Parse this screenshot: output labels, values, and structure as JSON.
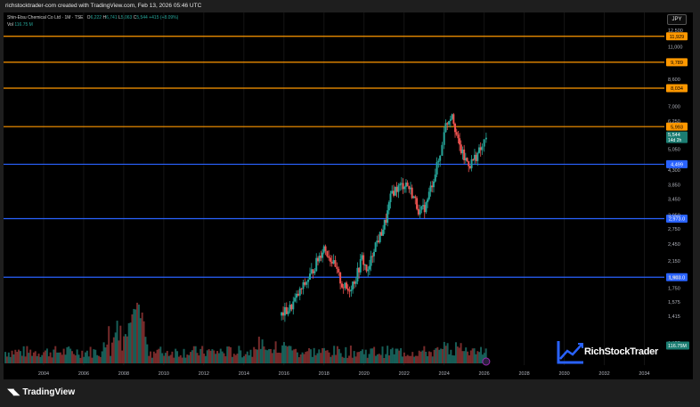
{
  "header": {
    "credit": "richstocktrader-com created with TradingView.com, Feb 13, 2026 05:46 UTC"
  },
  "legend": {
    "title": "Shin-Etsu Chemical Co Ltd · 1M · TSE",
    "o_label": "O",
    "o_val": "6,222",
    "h_label": "H",
    "h_val": "6,741",
    "l_label": "L",
    "l_val": "5,063",
    "c_label": "C",
    "c_val": "5,544",
    "change": "+415 (+8.09%)",
    "vol_label": "Vol",
    "vol_val": "116.75 M"
  },
  "currency": "JPY",
  "price_tag": {
    "price": "5,544",
    "countdown": "14d 2h"
  },
  "volume_tag": "116.75M",
  "footer": {
    "brand": "TradingView"
  },
  "watermark": {
    "brand": "RichStockTrader"
  },
  "colors": {
    "up": "#26a69a",
    "down": "#ef5350",
    "orange_line": "#ff9800",
    "blue_line": "#2962ff",
    "background": "#000000"
  },
  "chart_data": {
    "type": "candlestick",
    "y_scale": "log",
    "ylim": [
      1100,
      14300
    ],
    "xlim": [
      2002,
      2035
    ],
    "y_ticks": [
      "12,500",
      "11,000",
      "8,600",
      "7,000",
      "6,250",
      "5,050",
      "4,300",
      "3,850",
      "3,450",
      "3,050",
      "2,750",
      "2,450",
      "2,150",
      "1,900",
      "1,750",
      "1,575",
      "1,415",
      "1,155"
    ],
    "x_ticks": [
      "2004",
      "2006",
      "2008",
      "2010",
      "2012",
      "2014",
      "2016",
      "2018",
      "2020",
      "2022",
      "2024",
      "2026",
      "2028",
      "2030",
      "2032",
      "2034"
    ],
    "horizontal_levels": [
      {
        "label": "11,929",
        "value": 11929,
        "color": "orange"
      },
      {
        "label": "9,789",
        "value": 9789,
        "color": "orange"
      },
      {
        "label": "8,034",
        "value": 8034,
        "color": "orange"
      },
      {
        "label": "5,993",
        "value": 5993,
        "color": "orange"
      },
      {
        "label": "4,499",
        "value": 4499,
        "color": "blue"
      },
      {
        "label": "2,973.0",
        "value": 2973,
        "color": "blue"
      },
      {
        "label": "1,903.0",
        "value": 1903,
        "color": "blue"
      }
    ],
    "price_path": [
      [
        2015.8,
        1420
      ],
      [
        2016.3,
        1500
      ],
      [
        2016.8,
        1700
      ],
      [
        2017.3,
        1920
      ],
      [
        2017.7,
        2180
      ],
      [
        2018.0,
        2400
      ],
      [
        2018.4,
        2150
      ],
      [
        2018.9,
        1800
      ],
      [
        2019.2,
        1720
      ],
      [
        2019.6,
        1900
      ],
      [
        2019.9,
        2200
      ],
      [
        2020.2,
        1960
      ],
      [
        2020.5,
        2400
      ],
      [
        2020.8,
        2600
      ],
      [
        2021.1,
        2950
      ],
      [
        2021.4,
        3650
      ],
      [
        2021.8,
        3800
      ],
      [
        2022.1,
        3900
      ],
      [
        2022.4,
        3600
      ],
      [
        2022.8,
        3100
      ],
      [
        2023.1,
        3300
      ],
      [
        2023.4,
        3900
      ],
      [
        2023.8,
        4800
      ],
      [
        2024.0,
        5900
      ],
      [
        2024.4,
        6700
      ],
      [
        2024.7,
        5300
      ],
      [
        2025.0,
        4700
      ],
      [
        2025.3,
        4500
      ],
      [
        2025.6,
        4800
      ],
      [
        2025.9,
        5100
      ],
      [
        2026.1,
        5544
      ]
    ]
  }
}
